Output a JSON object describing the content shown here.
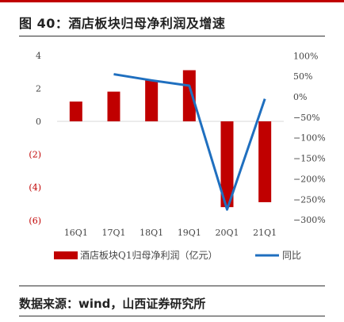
{
  "header": {
    "title": "图 40：酒店板块归母净利润及增速"
  },
  "footer": {
    "source": "数据来源：wind，山西证券研究所"
  },
  "chart_data": {
    "type": "bar",
    "categories": [
      "16Q1",
      "17Q1",
      "18Q1",
      "19Q1",
      "20Q1",
      "21Q1"
    ],
    "series": [
      {
        "name": "酒店板块Q1归母净利润（亿元）",
        "type": "bar",
        "axis": "left",
        "color": "#c00000",
        "values": [
          1.2,
          1.8,
          2.5,
          3.1,
          -5.2,
          -4.9
        ]
      },
      {
        "name": "同比",
        "type": "line",
        "axis": "right",
        "color": "#1f6fbf",
        "values": [
          null,
          55,
          40,
          27,
          -275,
          -5
        ]
      }
    ],
    "left_axis": {
      "ylim": [
        -6,
        4
      ],
      "ticks": [
        4,
        2,
        0,
        -2,
        -4,
        -6
      ],
      "tick_labels": [
        "4",
        "2",
        "0",
        "(2)",
        "(4)",
        "(6)"
      ],
      "negative_color": "#c00000"
    },
    "right_axis": {
      "ylim": [
        -300,
        100
      ],
      "ticks": [
        100,
        50,
        0,
        -50,
        -100,
        -150,
        -200,
        -250,
        -300
      ],
      "tick_labels": [
        "100%",
        "50%",
        "0%",
        "−50%",
        "−100%",
        "−150%",
        "−200%",
        "−250%",
        "−300%"
      ]
    },
    "legend": {
      "position": "bottom"
    },
    "grid": false
  }
}
